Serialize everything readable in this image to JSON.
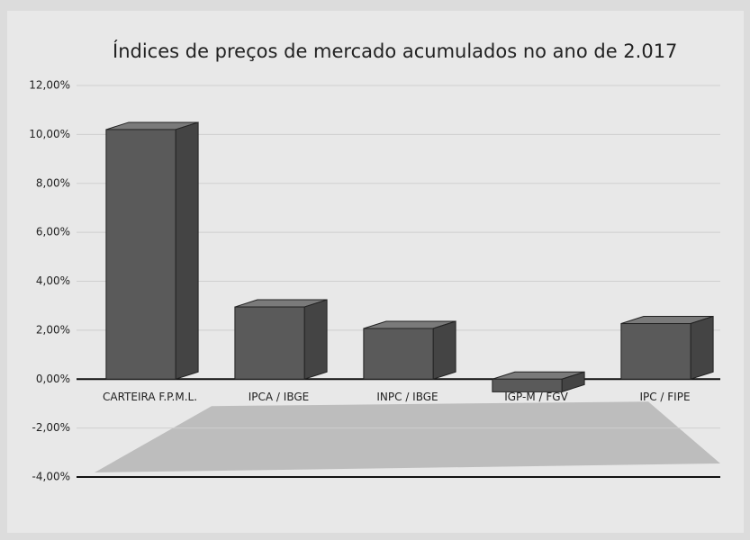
{
  "chart_data": {
    "type": "bar",
    "title": "Índices de preços de mercado acumulados no ano de 2.017",
    "categories": [
      "CARTEIRA F.P.M.L.",
      "IPCA / IBGE",
      "INPC / IBGE",
      "IGP-M / FGV",
      "IPC / FIPE"
    ],
    "values": [
      10.2,
      2.95,
      2.07,
      -0.52,
      2.27
    ],
    "color": "#5a5a5a",
    "ylim": [
      -4,
      12
    ],
    "yticks": [
      {
        "value": -4,
        "label": "-4,00%"
      },
      {
        "value": -2,
        "label": "-2,00%"
      },
      {
        "value": 0,
        "label": "0,00%"
      },
      {
        "value": 2,
        "label": "2,00%"
      },
      {
        "value": 4,
        "label": "4,00%"
      },
      {
        "value": 6,
        "label": "6,00%"
      },
      {
        "value": 8,
        "label": "8,00%"
      },
      {
        "value": 10,
        "label": "10,00%"
      },
      {
        "value": 12,
        "label": "12,00%"
      }
    ],
    "grid": true
  }
}
